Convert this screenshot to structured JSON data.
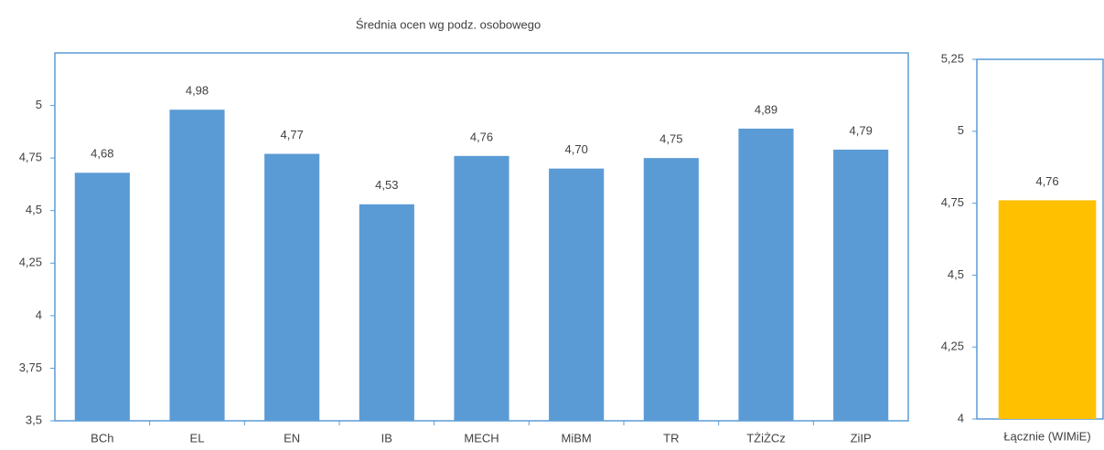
{
  "chart_data": [
    {
      "type": "bar",
      "title": "Średnia ocen wg podz. osobowego",
      "categories": [
        "BCh",
        "EL",
        "EN",
        "IB",
        "MECH",
        "MiBM",
        "TR",
        "TŻiŻCz",
        "ZiIP"
      ],
      "values": [
        4.68,
        4.98,
        4.77,
        4.53,
        4.76,
        4.7,
        4.75,
        4.89,
        4.79
      ],
      "value_labels": [
        "4,68",
        "4,98",
        "4,77",
        "4,53",
        "4,76",
        "4,70",
        "4,75",
        "4,89",
        "4,79"
      ],
      "color": "#5b9bd5",
      "ylim": [
        3.5,
        5.25
      ],
      "yticks": [
        {
          "value": 3.5,
          "label": "3,5"
        },
        {
          "value": 3.75,
          "label": "3,75"
        },
        4,
        {
          "value": 4.25,
          "label": "4,25"
        },
        {
          "value": 4.5,
          "label": "4,5"
        },
        {
          "value": 4.75,
          "label": "4,75"
        },
        5
      ],
      "grid": false
    },
    {
      "type": "bar",
      "categories": [
        "Łącznie (WIMiE)"
      ],
      "values": [
        4.76
      ],
      "value_labels": [
        "4,76"
      ],
      "color": "#ffc000",
      "ylim": [
        4,
        5.25
      ],
      "yticks": [
        4,
        {
          "value": 4.25,
          "label": "4,25"
        },
        {
          "value": 4.5,
          "label": "4,5"
        },
        {
          "value": 4.75,
          "label": "4,75"
        },
        5,
        {
          "value": 5.25,
          "label": "5,25"
        }
      ],
      "grid": false
    }
  ]
}
